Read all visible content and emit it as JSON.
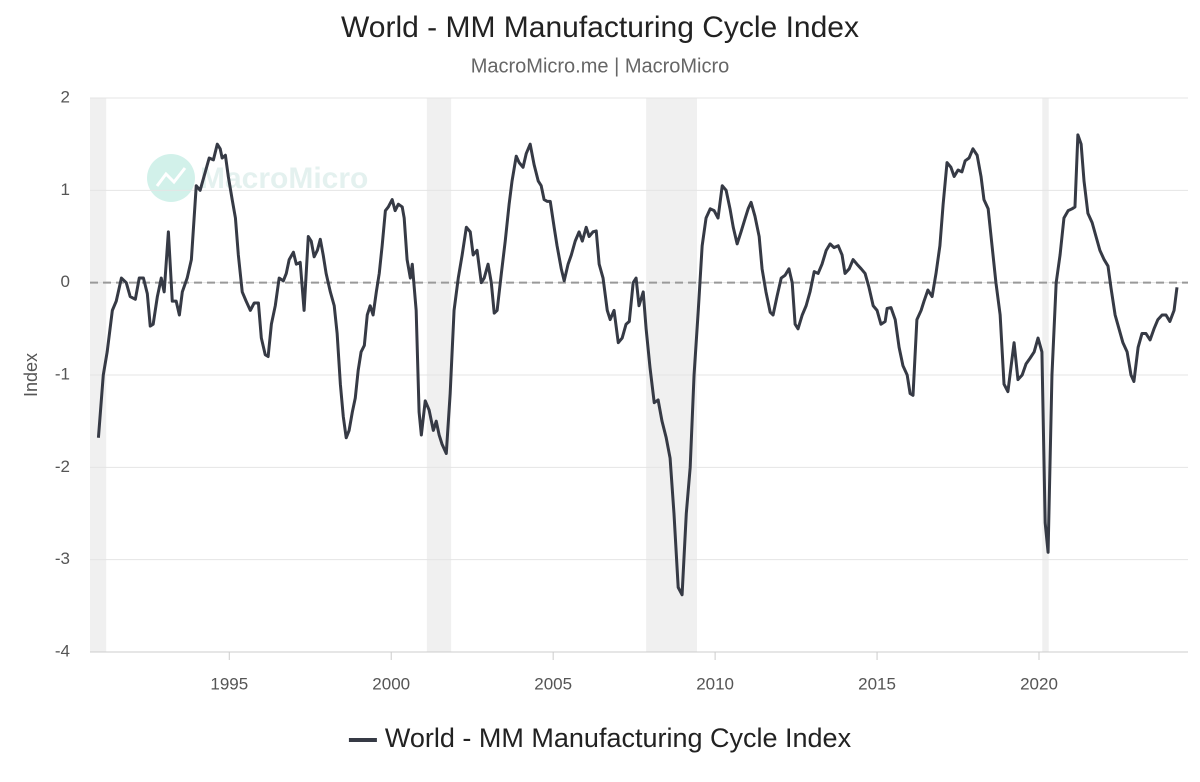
{
  "chart_data": {
    "type": "line",
    "title": "World - MM Manufacturing Cycle Index",
    "subtitle": "MacroMicro.me | MacroMicro",
    "watermark": "MacroMicro",
    "y_label": "Index",
    "xlim": [
      1990.7,
      2024.6
    ],
    "xticks": [
      1995,
      2000,
      2005,
      2010,
      2015,
      2020
    ],
    "ylim": [
      -4,
      2
    ],
    "yticks": [
      -4,
      -3,
      -2,
      -1,
      0,
      1,
      2
    ],
    "grid": true,
    "legend": "bottom",
    "reference_line": 0,
    "shaded_ranges": [
      [
        1990.7,
        1991.2
      ],
      [
        2001.1,
        2001.85
      ],
      [
        2007.87,
        2009.44
      ],
      [
        2020.1,
        2020.3
      ]
    ],
    "x": [
      1990.96,
      1991.11,
      1991.23,
      1991.39,
      1991.51,
      1991.67,
      1991.82,
      1991.94,
      1992.1,
      1992.22,
      1992.35,
      1992.47,
      1992.56,
      1992.65,
      1992.78,
      1992.9,
      1992.99,
      1993.12,
      1993.24,
      1993.36,
      1993.46,
      1993.55,
      1993.7,
      1993.83,
      1993.98,
      1994.1,
      1994.26,
      1994.38,
      1994.51,
      1994.63,
      1994.72,
      1994.78,
      1994.88,
      1994.97,
      1995.09,
      1995.19,
      1995.28,
      1995.4,
      1995.52,
      1995.65,
      1995.77,
      1995.9,
      1995.99,
      1996.11,
      1996.2,
      1996.3,
      1996.42,
      1996.54,
      1996.67,
      1996.76,
      1996.85,
      1996.98,
      1997.07,
      1997.19,
      1997.31,
      1997.44,
      1997.53,
      1997.62,
      1997.72,
      1997.81,
      1997.9,
      1997.99,
      1998.12,
      1998.24,
      1998.33,
      1998.43,
      1998.52,
      1998.61,
      1998.7,
      1998.8,
      1998.89,
      1998.98,
      1999.07,
      1999.17,
      1999.26,
      1999.35,
      1999.44,
      1999.54,
      1999.63,
      1999.72,
      1999.82,
      1999.91,
      2000.03,
      2000.12,
      2000.22,
      2000.34,
      2000.4,
      2000.49,
      2000.59,
      2000.65,
      2000.77,
      2000.86,
      2000.93,
      2001.05,
      2001.17,
      2001.3,
      2001.39,
      2001.48,
      2001.57,
      2001.7,
      2001.82,
      2001.94,
      2002.07,
      2002.19,
      2002.32,
      2002.44,
      2002.53,
      2002.65,
      2002.78,
      2002.87,
      2002.99,
      2003.09,
      2003.18,
      2003.27,
      2003.4,
      2003.52,
      2003.64,
      2003.73,
      2003.86,
      2003.95,
      2004.07,
      2004.17,
      2004.29,
      2004.41,
      2004.54,
      2004.63,
      2004.72,
      2004.82,
      2004.91,
      2005.03,
      2005.12,
      2005.25,
      2005.34,
      2005.46,
      2005.56,
      2005.68,
      2005.8,
      2005.9,
      2006.02,
      2006.11,
      2006.23,
      2006.33,
      2006.42,
      2006.54,
      2006.67,
      2006.76,
      2006.88,
      2007.01,
      2007.13,
      2007.25,
      2007.35,
      2007.47,
      2007.56,
      2007.65,
      2007.78,
      2007.87,
      2007.99,
      2008.12,
      2008.24,
      2008.36,
      2008.49,
      2008.61,
      2008.73,
      2008.86,
      2008.98,
      2009.11,
      2009.23,
      2009.35,
      2009.48,
      2009.6,
      2009.72,
      2009.85,
      2009.97,
      2010.09,
      2010.22,
      2010.34,
      2010.46,
      2010.56,
      2010.68,
      2010.8,
      2010.93,
      2011.02,
      2011.11,
      2011.23,
      2011.36,
      2011.45,
      2011.57,
      2011.7,
      2011.79,
      2011.91,
      2012.04,
      2012.16,
      2012.28,
      2012.38,
      2012.47,
      2012.56,
      2012.69,
      2012.81,
      2012.93,
      2013.06,
      2013.18,
      2013.3,
      2013.43,
      2013.55,
      2013.67,
      2013.8,
      2013.92,
      2014.01,
      2014.14,
      2014.26,
      2014.38,
      2014.51,
      2014.63,
      2014.75,
      2014.88,
      2015.0,
      2015.12,
      2015.25,
      2015.31,
      2015.43,
      2015.56,
      2015.68,
      2015.8,
      2015.93,
      2016.02,
      2016.11,
      2016.23,
      2016.36,
      2016.45,
      2016.57,
      2016.7,
      2016.82,
      2016.94,
      2017.04,
      2017.16,
      2017.28,
      2017.38,
      2017.5,
      2017.62,
      2017.72,
      2017.84,
      2017.96,
      2018.09,
      2018.21,
      2018.3,
      2018.43,
      2018.55,
      2018.67,
      2018.8,
      2018.92,
      2019.04,
      2019.14,
      2019.23,
      2019.35,
      2019.48,
      2019.6,
      2019.72,
      2019.85,
      2019.97,
      2020.09,
      2020.19,
      2020.28,
      2020.4,
      2020.53,
      2020.65,
      2020.77,
      2020.9,
      2021.02,
      2021.11,
      2021.2,
      2021.3,
      2021.39,
      2021.51,
      2021.64,
      2021.76,
      2021.88,
      2022.01,
      2022.13,
      2022.22,
      2022.35,
      2022.47,
      2022.59,
      2022.72,
      2022.84,
      2022.93,
      2023.06,
      2023.18,
      2023.3,
      2023.43,
      2023.55,
      2023.67,
      2023.8,
      2023.92,
      2024.04,
      2024.17,
      2024.26
    ],
    "series": [
      {
        "name": "World - MM Manufacturing Cycle Index",
        "color": "#363a45",
        "values": [
          -1.68,
          -1.0,
          -0.75,
          -0.3,
          -0.2,
          0.05,
          0.0,
          -0.15,
          -0.18,
          0.05,
          0.05,
          -0.12,
          -0.47,
          -0.45,
          -0.15,
          0.05,
          -0.1,
          0.55,
          -0.2,
          -0.2,
          -0.35,
          -0.1,
          0.05,
          0.25,
          1.05,
          1.0,
          1.2,
          1.35,
          1.33,
          1.5,
          1.45,
          1.35,
          1.38,
          1.15,
          0.9,
          0.7,
          0.3,
          -0.1,
          -0.2,
          -0.3,
          -0.22,
          -0.22,
          -0.6,
          -0.78,
          -0.8,
          -0.45,
          -0.25,
          0.05,
          0.02,
          0.1,
          0.25,
          0.33,
          0.2,
          0.22,
          -0.3,
          0.5,
          0.45,
          0.28,
          0.35,
          0.47,
          0.3,
          0.1,
          -0.1,
          -0.25,
          -0.55,
          -1.1,
          -1.45,
          -1.68,
          -1.6,
          -1.4,
          -1.25,
          -0.95,
          -0.75,
          -0.68,
          -0.35,
          -0.25,
          -0.35,
          -0.1,
          0.1,
          0.4,
          0.78,
          0.82,
          0.9,
          0.78,
          0.85,
          0.82,
          0.7,
          0.25,
          0.05,
          0.2,
          -0.3,
          -1.4,
          -1.65,
          -1.28,
          -1.38,
          -1.6,
          -1.5,
          -1.65,
          -1.75,
          -1.85,
          -1.2,
          -0.3,
          0.05,
          0.3,
          0.6,
          0.55,
          0.3,
          0.35,
          0.0,
          0.05,
          0.2,
          0.0,
          -0.33,
          -0.3,
          0.1,
          0.45,
          0.85,
          1.1,
          1.37,
          1.3,
          1.25,
          1.4,
          1.5,
          1.28,
          1.1,
          1.05,
          0.9,
          0.88,
          0.88,
          0.6,
          0.4,
          0.15,
          0.02,
          0.2,
          0.3,
          0.45,
          0.55,
          0.45,
          0.6,
          0.5,
          0.55,
          0.56,
          0.2,
          0.05,
          -0.3,
          -0.4,
          -0.3,
          -0.65,
          -0.6,
          -0.45,
          -0.42,
          0.0,
          0.05,
          -0.25,
          -0.1,
          -0.5,
          -0.92,
          -1.3,
          -1.27,
          -1.5,
          -1.68,
          -1.9,
          -2.5,
          -3.3,
          -3.38,
          -2.5,
          -2.0,
          -1.0,
          -0.3,
          0.4,
          0.7,
          0.8,
          0.78,
          0.7,
          1.05,
          1.0,
          0.8,
          0.6,
          0.42,
          0.55,
          0.7,
          0.8,
          0.87,
          0.72,
          0.5,
          0.15,
          -0.1,
          -0.32,
          -0.35,
          -0.15,
          0.05,
          0.08,
          0.15,
          0.0,
          -0.45,
          -0.5,
          -0.35,
          -0.25,
          -0.1,
          0.12,
          0.1,
          0.2,
          0.35,
          0.42,
          0.38,
          0.4,
          0.3,
          0.1,
          0.15,
          0.25,
          0.2,
          0.15,
          0.1,
          -0.05,
          -0.25,
          -0.3,
          -0.45,
          -0.42,
          -0.28,
          -0.27,
          -0.4,
          -0.7,
          -0.9,
          -1.0,
          -1.2,
          -1.22,
          -0.4,
          -0.3,
          -0.2,
          -0.08,
          -0.15,
          0.1,
          0.4,
          0.85,
          1.3,
          1.25,
          1.15,
          1.22,
          1.2,
          1.32,
          1.35,
          1.45,
          1.38,
          1.15,
          0.9,
          0.8,
          0.4,
          0.0,
          -0.35,
          -1.1,
          -1.18,
          -0.9,
          -0.65,
          -1.05,
          -1.0,
          -0.88,
          -0.82,
          -0.75,
          -0.6,
          -0.75,
          -2.6,
          -2.92,
          -1.0,
          0.0,
          0.3,
          0.7,
          0.78,
          0.8,
          0.82,
          1.6,
          1.5,
          1.1,
          0.75,
          0.65,
          0.5,
          0.35,
          0.25,
          0.18,
          -0.05,
          -0.35,
          -0.5,
          -0.65,
          -0.75,
          -1.0,
          -1.07,
          -0.7,
          -0.55,
          -0.55,
          -0.62,
          -0.5,
          -0.4,
          -0.35,
          -0.35,
          -0.42,
          -0.3,
          -0.05
        ]
      }
    ]
  }
}
